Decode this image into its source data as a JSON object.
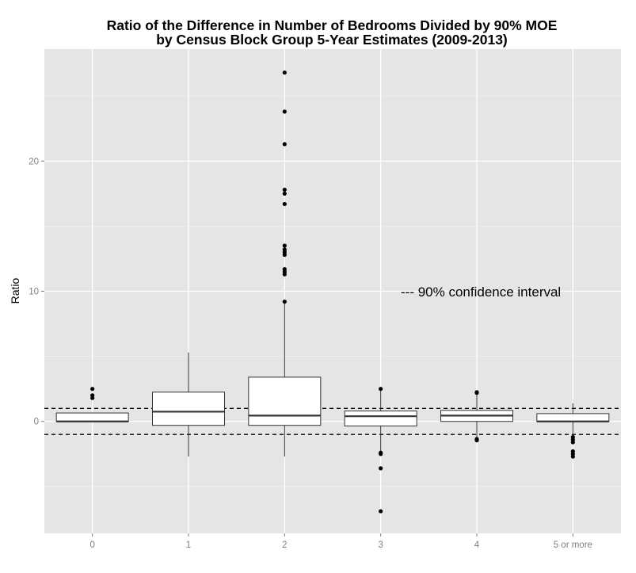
{
  "chart_data": {
    "type": "boxplot",
    "title": [
      "Ratio of the Difference in Number of Bedrooms Divided by 90% MOE",
      "by Census Block Group 5-Year Estimates (2009-2013)"
    ],
    "xlabel": "",
    "ylabel": "Ratio",
    "ylim": [
      -8.6,
      28.6
    ],
    "y_ticks": [
      0,
      10,
      20
    ],
    "grid": true,
    "annotation": "--- 90% confidence interval",
    "reference_lines": [
      -1,
      1
    ],
    "categories": [
      "0",
      "1",
      "2",
      "3",
      "4",
      "5 or more"
    ],
    "boxes": [
      {
        "category": "0",
        "lower_whisker": 0,
        "q1": 0,
        "median": 0,
        "q3": 0.65,
        "upper_whisker": 0.65,
        "outliers": [
          1.8,
          2.0,
          2.5
        ]
      },
      {
        "category": "1",
        "lower_whisker": -2.7,
        "q1": -0.3,
        "median": 0.75,
        "q3": 2.25,
        "upper_whisker": 5.3,
        "outliers": []
      },
      {
        "category": "2",
        "lower_whisker": -2.7,
        "q1": -0.3,
        "median": 0.45,
        "q3": 3.4,
        "upper_whisker": 9.1,
        "outliers": [
          9.2,
          11.3,
          11.5,
          11.7,
          12.8,
          13.0,
          13.2,
          13.5,
          16.7,
          17.5,
          17.8,
          21.3,
          23.8,
          26.8
        ]
      },
      {
        "category": "3",
        "lower_whisker": -2.3,
        "q1": -0.35,
        "median": 0.4,
        "q3": 0.8,
        "upper_whisker": 2.4,
        "outliers": [
          2.5,
          -2.4,
          -2.5,
          -3.6,
          -6.9
        ]
      },
      {
        "category": "4",
        "lower_whisker": -1.3,
        "q1": 0,
        "median": 0.45,
        "q3": 0.85,
        "upper_whisker": 2.1,
        "outliers": [
          2.2,
          2.25,
          -1.35,
          -1.45
        ]
      },
      {
        "category": "5 or more",
        "lower_whisker": -1,
        "q1": 0,
        "median": 0,
        "q3": 0.6,
        "upper_whisker": 1.4,
        "outliers": [
          -1.2,
          -1.4,
          -1.6,
          -2.3,
          -2.5,
          -2.7
        ]
      }
    ],
    "colors": {
      "panel_background": "#e5e5e5",
      "grid_major": "#ffffff",
      "grid_minor": "#f2f2f2",
      "box_fill": "#ffffff",
      "box_stroke": "#333333",
      "outlier": "#000000",
      "tick_text": "#7f7f7f"
    }
  }
}
